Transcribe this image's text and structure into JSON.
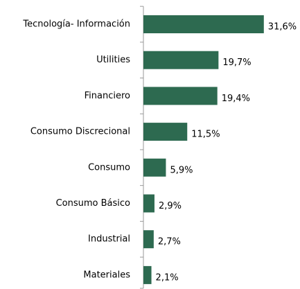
{
  "chart_data": {
    "type": "bar",
    "orientation": "horizontal",
    "categories": [
      "Tecnología- Información",
      "Utilities",
      "Financiero",
      "Consumo Discrecional",
      "Consumo",
      "Consumo Básico",
      "Industrial",
      "Materiales"
    ],
    "values": [
      31.6,
      19.7,
      19.4,
      11.5,
      5.9,
      2.9,
      2.7,
      2.1
    ],
    "value_labels": [
      "31,6%",
      "19,7%",
      "19,4%",
      "11,5%",
      "5,9%",
      "2,9%",
      "2,7%",
      "2,1%"
    ],
    "color": "#2d6a50",
    "xlim": [
      0,
      40
    ]
  }
}
